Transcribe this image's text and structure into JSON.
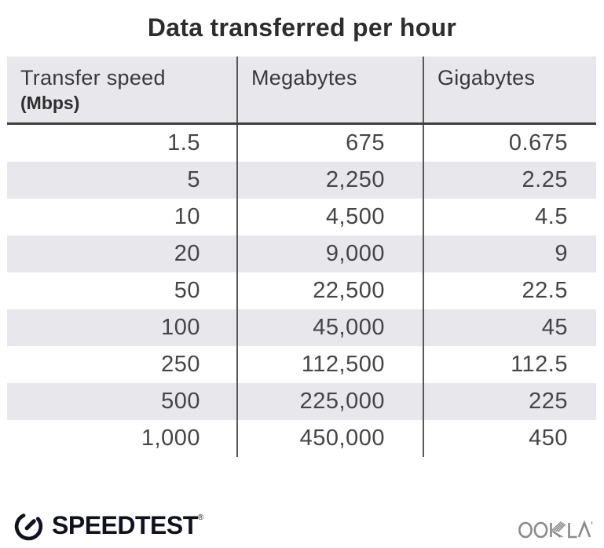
{
  "title": "Data transferred per hour",
  "table": {
    "columns": [
      {
        "label": "Transfer speed",
        "sublabel": "(Mbps)"
      },
      {
        "label": "Megabytes"
      },
      {
        "label": "Gigabytes"
      }
    ],
    "rows": [
      [
        "1.5",
        "675",
        "0.675"
      ],
      [
        "5",
        "2,250",
        "2.25"
      ],
      [
        "10",
        "4,500",
        "4.5"
      ],
      [
        "20",
        "9,000",
        "9"
      ],
      [
        "50",
        "22,500",
        "22.5"
      ],
      [
        "100",
        "45,000",
        "45"
      ],
      [
        "250",
        "112,500",
        "112.5"
      ],
      [
        "500",
        "225,000",
        "225"
      ],
      [
        "1,000",
        "450,000",
        "450"
      ]
    ]
  },
  "footer": {
    "speedtest_label": "SPEEDTEST",
    "speedtest_reg": "®",
    "ookla_label": "OOKLA"
  },
  "colors": {
    "stripe": "#e8e7ec",
    "header_bg": "#e8e7eb",
    "divider": "#59595b",
    "header_border": "#3e3e40",
    "text": "#454547",
    "title_text": "#2d2d2f",
    "speedtest_logo": "#101120",
    "ookla_logo": "#8a8a8a"
  },
  "chart_data": {
    "type": "table",
    "title": "Data transferred per hour",
    "columns": [
      "Transfer speed (Mbps)",
      "Megabytes",
      "Gigabytes"
    ],
    "rows": [
      [
        1.5,
        675,
        0.675
      ],
      [
        5,
        2250,
        2.25
      ],
      [
        10,
        4500,
        4.5
      ],
      [
        20,
        9000,
        9
      ],
      [
        50,
        22500,
        22.5
      ],
      [
        100,
        45000,
        45
      ],
      [
        250,
        112500,
        112.5
      ],
      [
        500,
        225000,
        225
      ],
      [
        1000,
        450000,
        450
      ]
    ],
    "layout": "striped rows, right-aligned numbers, vertical column dividers, grid off"
  }
}
